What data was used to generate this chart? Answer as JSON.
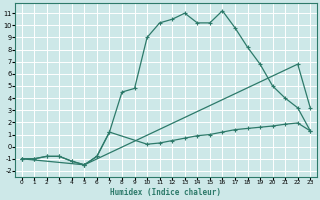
{
  "xlabel": "Humidex (Indice chaleur)",
  "background_color": "#cde8e8",
  "grid_color": "#ffffff",
  "line_color": "#2d7a6a",
  "xlim": [
    -0.5,
    23.5
  ],
  "ylim": [
    -2.5,
    11.8
  ],
  "xticks": [
    0,
    1,
    2,
    3,
    4,
    5,
    6,
    7,
    8,
    9,
    10,
    11,
    12,
    13,
    14,
    15,
    16,
    17,
    18,
    19,
    20,
    21,
    22,
    23
  ],
  "yticks": [
    -2,
    -1,
    0,
    1,
    2,
    3,
    4,
    5,
    6,
    7,
    8,
    9,
    10,
    11
  ],
  "line1_x": [
    0,
    1,
    2,
    3,
    4,
    5,
    6,
    7,
    8,
    9,
    10,
    11,
    12,
    13,
    14,
    15,
    16,
    17,
    18,
    19,
    20,
    21,
    22,
    23
  ],
  "line1_y": [
    -1,
    -1,
    -0.8,
    -0.8,
    -1.2,
    -1.5,
    -0.8,
    1.2,
    4.5,
    4.8,
    9.0,
    10.2,
    10.5,
    11.0,
    10.2,
    10.2,
    11.2,
    9.8,
    8.2,
    6.8,
    5.0,
    4.0,
    3.2,
    1.3
  ],
  "line2_x": [
    0,
    1,
    2,
    3,
    4,
    5,
    6,
    7,
    10,
    11,
    12,
    13,
    14,
    15,
    16,
    17,
    18,
    19,
    20,
    21,
    22,
    23
  ],
  "line2_y": [
    -1,
    -1,
    -0.8,
    -0.8,
    -1.2,
    -1.5,
    -0.8,
    1.2,
    0.2,
    0.3,
    0.5,
    0.7,
    0.9,
    1.0,
    1.2,
    1.4,
    1.5,
    1.6,
    1.7,
    1.85,
    1.95,
    1.3
  ],
  "line3_x": [
    0,
    5,
    22,
    23
  ],
  "line3_y": [
    -1,
    -1.5,
    6.8,
    3.2
  ]
}
